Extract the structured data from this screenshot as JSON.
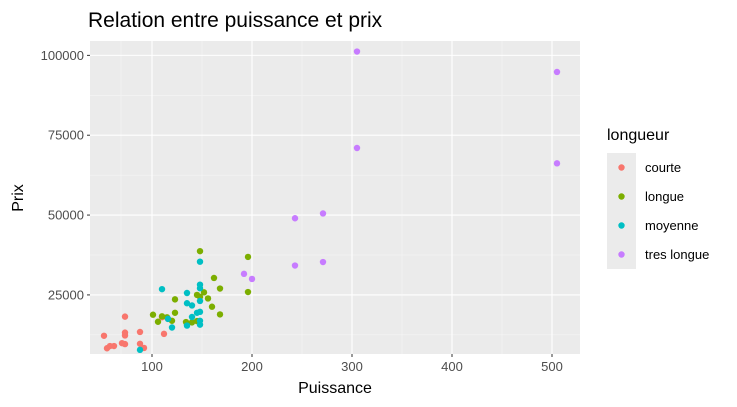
{
  "chart_data": {
    "type": "scatter",
    "title": "Relation entre puissance et prix",
    "xlabel": "Puissance",
    "ylabel": "Prix",
    "xlim": [
      38,
      528
    ],
    "ylim": [
      6500,
      104500
    ],
    "x_ticks": [
      100,
      200,
      300,
      400,
      500
    ],
    "y_ticks": [
      25000,
      50000,
      75000,
      100000
    ],
    "x_tick_labels": [
      "100",
      "200",
      "300",
      "400",
      "500"
    ],
    "y_tick_labels": [
      "25000",
      "50000",
      "75000",
      "100000"
    ],
    "grid": true,
    "legend": {
      "title": "longueur",
      "position": "right"
    },
    "series": [
      {
        "name": "courte",
        "color": "#F8766D",
        "points": [
          [
            52,
            12200
          ],
          [
            55,
            8300
          ],
          [
            58,
            9000
          ],
          [
            62,
            9000
          ],
          [
            70,
            9900
          ],
          [
            73,
            18200
          ],
          [
            73,
            13200
          ],
          [
            73,
            12300
          ],
          [
            73,
            9600
          ],
          [
            88,
            13400
          ],
          [
            88,
            9700
          ],
          [
            92,
            8400
          ],
          [
            110,
            18000
          ],
          [
            112,
            12800
          ],
          [
            116,
            17500
          ]
        ]
      },
      {
        "name": "longue",
        "color": "#7CAE00",
        "points": [
          [
            101,
            18800
          ],
          [
            106,
            16600
          ],
          [
            110,
            18300
          ],
          [
            115,
            18000
          ],
          [
            120,
            16900
          ],
          [
            123,
            19400
          ],
          [
            123,
            23600
          ],
          [
            134,
            16500
          ],
          [
            140,
            16400
          ],
          [
            145,
            25000
          ],
          [
            145,
            16800
          ],
          [
            148,
            38700
          ],
          [
            148,
            24400
          ],
          [
            152,
            25800
          ],
          [
            156,
            23900
          ],
          [
            160,
            21300
          ],
          [
            162,
            30300
          ],
          [
            168,
            27000
          ],
          [
            168,
            18900
          ],
          [
            196,
            36900
          ],
          [
            196,
            25900
          ]
        ]
      },
      {
        "name": "moyenne",
        "color": "#00BFC4",
        "points": [
          [
            88,
            7800
          ],
          [
            110,
            26800
          ],
          [
            116,
            17500
          ],
          [
            120,
            14800
          ],
          [
            135,
            25600
          ],
          [
            135,
            22400
          ],
          [
            135,
            15400
          ],
          [
            140,
            18100
          ],
          [
            140,
            21700
          ],
          [
            145,
            19400
          ],
          [
            148,
            35400
          ],
          [
            148,
            28200
          ],
          [
            148,
            27100
          ],
          [
            148,
            23100
          ],
          [
            148,
            19700
          ],
          [
            148,
            16900
          ],
          [
            148,
            15700
          ]
        ]
      },
      {
        "name": "tres longue",
        "color": "#C77CFF",
        "points": [
          [
            192,
            31600
          ],
          [
            200,
            30000
          ],
          [
            243,
            49000
          ],
          [
            243,
            34200
          ],
          [
            271,
            50500
          ],
          [
            271,
            35300
          ],
          [
            305,
            101200
          ],
          [
            305,
            71000
          ],
          [
            505,
            94800
          ],
          [
            505,
            66200
          ]
        ]
      }
    ]
  }
}
